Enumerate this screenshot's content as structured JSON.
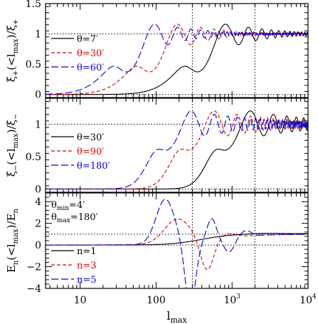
{
  "chart_data": [
    {
      "type": "line",
      "ylabel": "ξ+(<lmax)/ξ+",
      "ylabel_main": "ξ",
      "ylabel_sub": "+",
      "ylabel_inner": "(<l",
      "ylabel_inner_sub": "max",
      "ylabel_tail": ")/ξ",
      "ylabel_tail_sub": "+",
      "x_scale": "log",
      "xlim": [
        3.5,
        10000
      ],
      "ylim": [
        -0.05,
        1.5
      ],
      "yticks": [
        0,
        0.5,
        1,
        1.5
      ],
      "ytick_labels": [
        "0",
        "0.5",
        "1",
        "1.5"
      ],
      "hlines": [
        1,
        0
      ],
      "vlines": [
        300,
        2000
      ],
      "legend_position": "center-left",
      "series": [
        {
          "name": "θ=7′",
          "label": "θ=7′",
          "color": "#000000",
          "dash": "solid",
          "model": "xip",
          "theta": 7
        },
        {
          "name": "θ=30′",
          "label": "θ=30′",
          "color": "#dd0000",
          "dash": "dashed",
          "model": "xip",
          "theta": 30
        },
        {
          "name": "θ=60′",
          "label": "θ=60′",
          "color": "#0000dd",
          "dash": "longdash",
          "model": "xip",
          "theta": 60
        }
      ]
    },
    {
      "type": "line",
      "ylabel": "ξ−(<lmax)/ξ−",
      "ylabel_main": "ξ",
      "ylabel_sub": "−",
      "ylabel_inner": "(<l",
      "ylabel_inner_sub": "max",
      "ylabel_tail": ")/ξ",
      "ylabel_tail_sub": "−",
      "x_scale": "log",
      "xlim": [
        3.5,
        10000
      ],
      "ylim": [
        -0.05,
        1.4
      ],
      "yticks": [
        0,
        0.5,
        1
      ],
      "ytick_labels": [
        "0",
        "0.5",
        "1"
      ],
      "hlines": [
        1,
        0
      ],
      "vlines": [
        300,
        2000
      ],
      "legend_position": "center-left",
      "series": [
        {
          "name": "θ=30′",
          "label": "θ=30′",
          "color": "#000000",
          "dash": "solid",
          "model": "xim",
          "theta": 30
        },
        {
          "name": "θ=90′",
          "label": "θ=90′",
          "color": "#dd0000",
          "dash": "dashed",
          "model": "xim",
          "theta": 90
        },
        {
          "name": "θ=180′",
          "label": "θ=180′",
          "color": "#0000dd",
          "dash": "longdash",
          "model": "xim",
          "theta": 180
        }
      ]
    },
    {
      "type": "line",
      "ylabel": "En(<lmax)/En",
      "ylabel_main": "E",
      "ylabel_sub": "n",
      "ylabel_inner": "(<l",
      "ylabel_inner_sub": "max",
      "ylabel_tail": ")/E",
      "ylabel_tail_sub": "n",
      "xlabel": "lmax",
      "xlabel_main": "l",
      "xlabel_sub": "max",
      "x_scale": "log",
      "xlim": [
        3.5,
        10000
      ],
      "ylim": [
        -4,
        4.8
      ],
      "yticks": [
        -4,
        -2,
        0,
        2,
        4
      ],
      "ytick_labels": [
        "−4",
        "−2",
        "0",
        "2",
        "4"
      ],
      "xticks": [
        10,
        100,
        1000,
        10000
      ],
      "xtick_labels": [
        {
          "base": "10",
          "exp": ""
        },
        {
          "base": "100",
          "exp": ""
        },
        {
          "base": "10",
          "exp": "3"
        },
        {
          "base": "10",
          "exp": "4"
        }
      ],
      "hlines": [
        1,
        0
      ],
      "vlines": [
        300,
        2000
      ],
      "annotation": {
        "line1_main": "θ",
        "line1_sub": "min",
        "line1_tail": "=4′",
        "line2_main": "θ",
        "line2_sub": "max",
        "line2_tail": "=180′"
      },
      "legend_position": "bottom-left",
      "series": [
        {
          "name": "n=1",
          "label": "n=1",
          "color": "#000000",
          "dash": "solid",
          "model": "En",
          "n": 1
        },
        {
          "name": "n=3",
          "label": "n=3",
          "color": "#dd0000",
          "dash": "dashed",
          "model": "En",
          "n": 3
        },
        {
          "name": "n=5",
          "label": "n=5",
          "color": "#0000dd",
          "dash": "longdash",
          "model": "En",
          "n": 5
        }
      ]
    }
  ]
}
